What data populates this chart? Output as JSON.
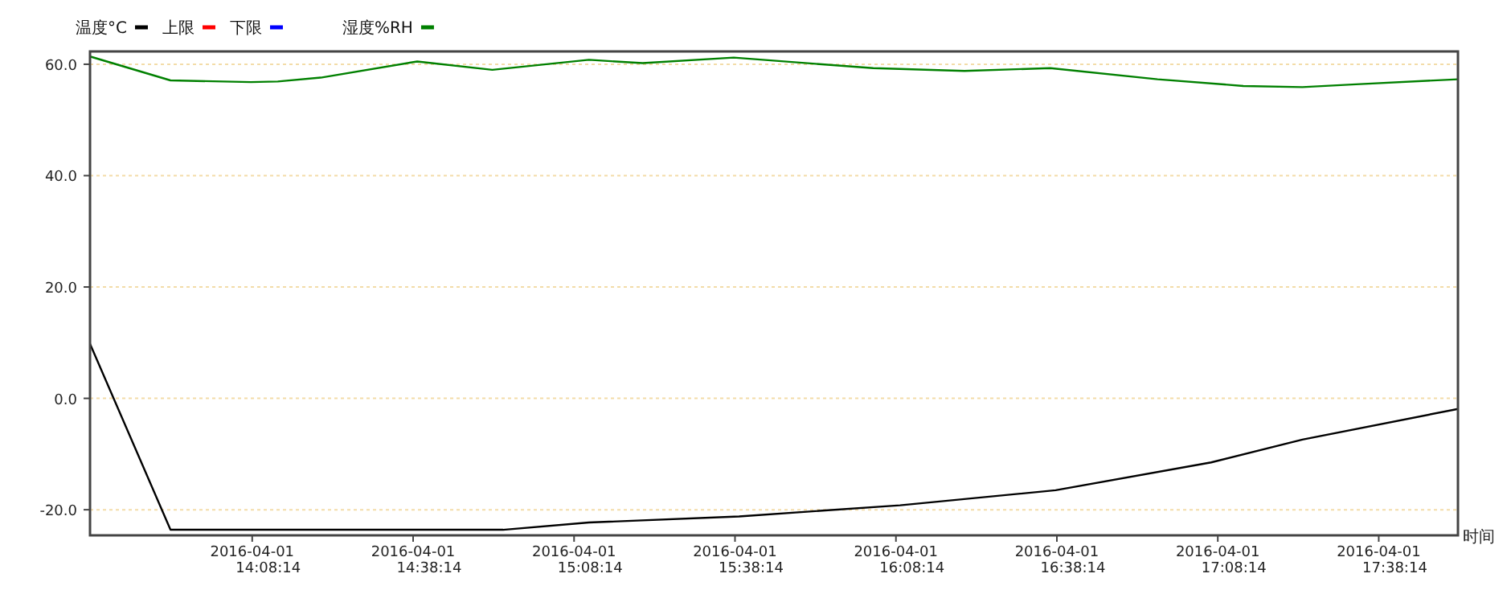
{
  "chart_data": {
    "type": "line",
    "xlabel": "时间",
    "legend": "top left",
    "grid": "y",
    "line_style": "solid",
    "xlim": [
      "2016-04-01T13:38",
      "2016-04-01T17:53"
    ],
    "ylim": [
      -24.6,
      62.3
    ],
    "xticks": [
      {
        "value": "2016-04-01T14:08:14",
        "label": "2016-04-01 14:08:14"
      },
      {
        "value": "2016-04-01T14:38:14",
        "label": "2016-04-01 14:38:14"
      },
      {
        "value": "2016-04-01T15:08:14",
        "label": "2016-04-01 15:08:14"
      },
      {
        "value": "2016-04-01T15:38:14",
        "label": "2016-04-01 15:38:14"
      },
      {
        "value": "2016-04-01T16:08:14",
        "label": "2016-04-01 16:08:14"
      },
      {
        "value": "2016-04-01T16:38:14",
        "label": "2016-04-01 16:38:14"
      },
      {
        "value": "2016-04-01T17:08:14",
        "label": "2016-04-01 17:08:14"
      },
      {
        "value": "2016-04-01T17:38:14",
        "label": "2016-04-01 17:38:14"
      }
    ],
    "yticks": [
      {
        "value": -20,
        "label": "-20.0"
      },
      {
        "value": 0,
        "label": "0.0"
      },
      {
        "value": 20,
        "label": "20.0"
      },
      {
        "value": 40,
        "label": "40.0"
      },
      {
        "value": 60,
        "label": "60.0"
      }
    ],
    "series": [
      {
        "name": "温度°C",
        "color": "#000000",
        "x": [
          "2016-04-01T13:38",
          "2016-04-01T13:53",
          "2016-04-01T14:55",
          "2016-04-01T15:11",
          "2016-04-01T15:39",
          "2016-04-01T16:09",
          "2016-04-01T16:38",
          "2016-04-01T17:07",
          "2016-04-01T17:24",
          "2016-04-01T17:53"
        ],
        "values": [
          9.8,
          -23.6,
          -23.6,
          -22.3,
          -21.2,
          -19.2,
          -16.5,
          -11.5,
          -7.4,
          -1.9
        ]
      },
      {
        "name": "上限",
        "color": "#ff0000"
      },
      {
        "name": "下限",
        "color": "#0000ff"
      },
      {
        "name": "湿度%RH",
        "color": "#008000",
        "x": [
          "2016-04-01T13:38",
          "2016-04-01T13:53",
          "2016-04-01T14:08",
          "2016-04-01T14:13",
          "2016-04-01T14:21",
          "2016-04-01T14:39",
          "2016-04-01T14:53",
          "2016-04-01T15:11",
          "2016-04-01T15:21",
          "2016-04-01T15:38",
          "2016-04-01T16:04",
          "2016-04-01T16:21",
          "2016-04-01T16:37",
          "2016-04-01T16:57",
          "2016-04-01T17:13",
          "2016-04-01T17:24",
          "2016-04-01T17:34",
          "2016-04-01T17:53"
        ],
        "values": [
          61.4,
          57.1,
          56.8,
          56.9,
          57.6,
          60.5,
          59.0,
          60.8,
          60.2,
          61.2,
          59.3,
          58.8,
          59.3,
          57.3,
          56.1,
          55.9,
          56.4,
          57.3
        ]
      }
    ]
  }
}
